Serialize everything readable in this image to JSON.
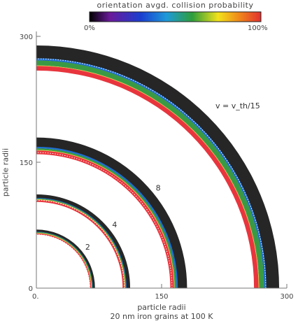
{
  "chart_data": {
    "type": "heatmap",
    "title": "",
    "colorbar": {
      "label": "orientation avgd. collision probability",
      "min_label": "0%",
      "max_label": "100%",
      "colors": [
        "#000000",
        "#6a1b9a",
        "#1a3fd0",
        "#1e9ad8",
        "#2e9e3a",
        "#f2e21a",
        "#f08a1a",
        "#e23030"
      ]
    },
    "xlabel": "particle radii",
    "ylabel": "particle radii",
    "subtitle": "20 nm iron grains at 100 K",
    "xlim": [
      0,
      300
    ],
    "ylim": [
      0,
      300
    ],
    "xticks": [
      {
        "value": 0,
        "label": "0."
      },
      {
        "value": 150,
        "label": "150"
      },
      {
        "value": 300,
        "label": "300"
      }
    ],
    "yticks": [
      {
        "value": 0,
        "label": "0"
      },
      {
        "value": 150,
        "label": "150"
      },
      {
        "value": 300,
        "label": "300"
      }
    ],
    "velocity_annotation": "v = v_th/15",
    "arcs": [
      {
        "label": "2",
        "target_radius": 64,
        "inner_radius": 64,
        "red_outer": 66,
        "green_outer": 67,
        "outer_radius": 70
      },
      {
        "label": "4",
        "target_radius": 105,
        "inner_radius": 103,
        "red_outer": 106,
        "green_outer": 107,
        "outer_radius": 112
      },
      {
        "label": "8",
        "target_radius": 162,
        "inner_radius": 160,
        "red_outer": 165,
        "green_outer": 167,
        "outer_radius": 180
      },
      {
        "label": "",
        "target_radius": 274,
        "inner_radius": 260,
        "red_outer": 266,
        "green_outer": 272,
        "outer_radius": 290
      }
    ]
  }
}
